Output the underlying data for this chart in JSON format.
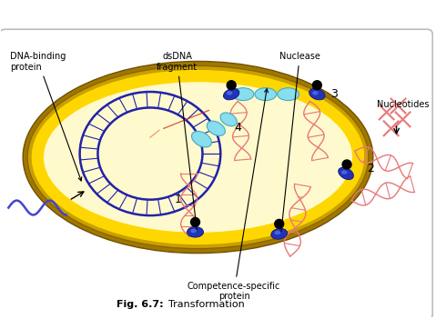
{
  "title": "Fig. 6.7:",
  "title2": "Transformation",
  "bg_color": "#ffffff",
  "labels": {
    "dna_binding": "DNA-binding\nprotein",
    "dsdna": "dsDNA\nfragment",
    "nuclease": "Nuclease",
    "competence": "Competence-specific\nprotein",
    "nucleotides": "Nucleotides",
    "num1": "1",
    "num2": "2",
    "num3": "3",
    "num4": "4"
  },
  "colors": {
    "bact_outer_dark": "#C8A000",
    "bact_outer_gold": "#FFD700",
    "bact_inner_fill": "#FFFACD",
    "bact_edge": "#8B6914",
    "chrom_blue": "#2222AA",
    "dna_pink": "#E87878",
    "dna_blue_strand": "#3333BB",
    "protein_blob": "#3344BB",
    "cyan_oval": "#66CCDD",
    "black": "#000000",
    "border": "#bbbbbb"
  }
}
